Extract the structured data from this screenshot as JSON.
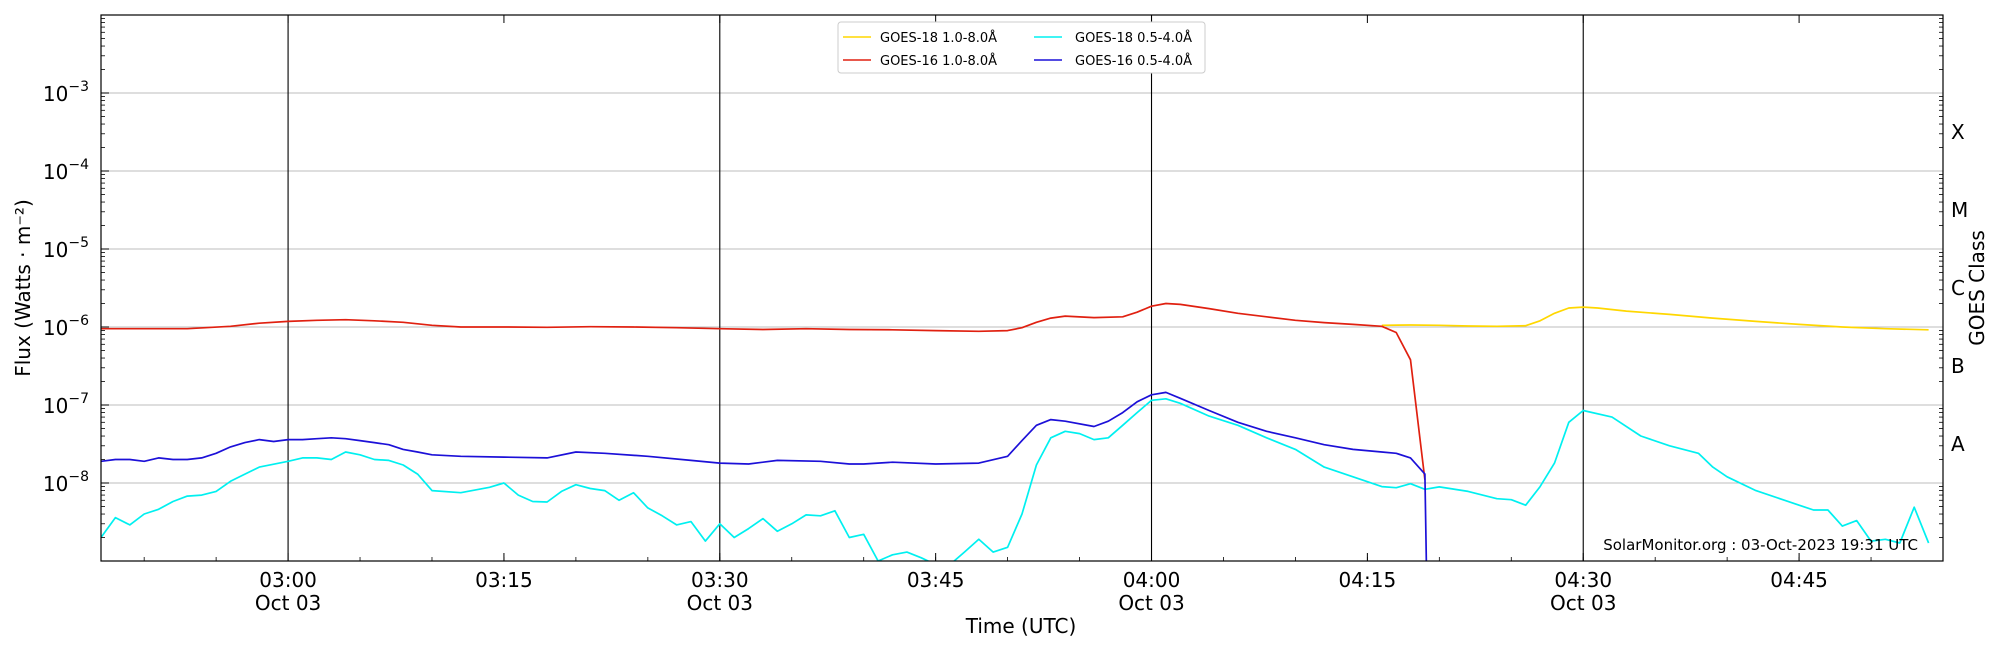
{
  "chart_data": {
    "type": "line",
    "xlabel": "Time (UTC)",
    "ylabel": "Flux (Watts · m⁻²)",
    "y2label": "GOES Class",
    "yscale": "log",
    "xlim": [
      "02:47",
      "04:55"
    ],
    "ylim": [
      1e-09,
      0.01
    ],
    "grid": "horizontal at decades, vertical at half-hours",
    "legend_placement": "top-center",
    "x_ticks": [
      {
        "time": "03:00",
        "label": "03:00",
        "sublabel": "Oct 03"
      },
      {
        "time": "03:15",
        "label": "03:15",
        "sublabel": ""
      },
      {
        "time": "03:30",
        "label": "03:30",
        "sublabel": "Oct 03"
      },
      {
        "time": "03:45",
        "label": "03:45",
        "sublabel": ""
      },
      {
        "time": "04:00",
        "label": "04:00",
        "sublabel": "Oct 03"
      },
      {
        "time": "04:15",
        "label": "04:15",
        "sublabel": ""
      },
      {
        "time": "04:30",
        "label": "04:30",
        "sublabel": "Oct 03"
      },
      {
        "time": "04:45",
        "label": "04:45",
        "sublabel": ""
      }
    ],
    "y_ticks": [
      {
        "value": 1e-08,
        "base": "10",
        "exp": "−8"
      },
      {
        "value": 1e-07,
        "base": "10",
        "exp": "−7"
      },
      {
        "value": 1e-06,
        "base": "10",
        "exp": "−6"
      },
      {
        "value": 1e-05,
        "base": "10",
        "exp": "−5"
      },
      {
        "value": 0.0001,
        "base": "10",
        "exp": "−4"
      },
      {
        "value": 0.001,
        "base": "10",
        "exp": "−3"
      }
    ],
    "goes_classes": [
      {
        "label": "A",
        "value": 3.16e-08
      },
      {
        "label": "B",
        "value": 3.16e-07
      },
      {
        "label": "C",
        "value": 3.16e-06
      },
      {
        "label": "M",
        "value": 3.16e-05
      },
      {
        "label": "X",
        "value": 0.000316
      }
    ],
    "series": [
      {
        "name": "GOES-18 1.0-8.0Å",
        "color": "#ffd700",
        "x": [
          "04:16",
          "04:18",
          "04:20",
          "04:22",
          "04:24",
          "04:26",
          "04:27",
          "04:28",
          "04:29",
          "04:30",
          "04:31",
          "04:33",
          "04:36",
          "04:39",
          "04:42",
          "04:45",
          "04:48",
          "04:51",
          "04:54"
        ],
        "y": [
          1.05e-06,
          1.06e-06,
          1.05e-06,
          1.03e-06,
          1.02e-06,
          1.04e-06,
          1.2e-06,
          1.5e-06,
          1.75e-06,
          1.8e-06,
          1.75e-06,
          1.6e-06,
          1.45e-06,
          1.3e-06,
          1.18e-06,
          1.08e-06,
          1e-06,
          9.5e-07,
          9.2e-07
        ]
      },
      {
        "name": "GOES-16 1.0-8.0Å",
        "color": "#e02010",
        "x": [
          "02:47",
          "02:50",
          "02:53",
          "02:56",
          "02:58",
          "03:00",
          "03:02",
          "03:04",
          "03:06",
          "03:08",
          "03:10",
          "03:12",
          "03:15",
          "03:18",
          "03:21",
          "03:24",
          "03:27",
          "03:30",
          "03:33",
          "03:36",
          "03:39",
          "03:42",
          "03:45",
          "03:48",
          "03:50",
          "03:51",
          "03:52",
          "03:53",
          "03:54",
          "03:56",
          "03:58",
          "03:59",
          "04:00",
          "04:01",
          "04:02",
          "04:04",
          "04:06",
          "04:08",
          "04:10",
          "04:12",
          "04:14",
          "04:16",
          "04:17",
          "04:18",
          "04:19"
        ],
        "y": [
          9.5e-07,
          9.5e-07,
          9.5e-07,
          1.02e-06,
          1.12e-06,
          1.18e-06,
          1.22e-06,
          1.24e-06,
          1.2e-06,
          1.15e-06,
          1.05e-06,
          1e-06,
          1e-06,
          9.9e-07,
          1.01e-06,
          1e-06,
          9.8e-07,
          9.5e-07,
          9.3e-07,
          9.5e-07,
          9.3e-07,
          9.2e-07,
          9e-07,
          8.8e-07,
          9e-07,
          9.8e-07,
          1.15e-06,
          1.3e-06,
          1.38e-06,
          1.32e-06,
          1.35e-06,
          1.55e-06,
          1.85e-06,
          2e-06,
          1.95e-06,
          1.72e-06,
          1.5e-06,
          1.35e-06,
          1.22e-06,
          1.14e-06,
          1.08e-06,
          1.02e-06,
          8.5e-07,
          3.8e-07,
          1.1e-08
        ]
      },
      {
        "name": "GOES-18 0.5-4.0Å",
        "color": "#00f0f0",
        "x": [
          "02:47",
          "02:48",
          "02:49",
          "02:50",
          "02:51",
          "02:52",
          "02:53",
          "02:54",
          "02:55",
          "02:56",
          "02:57",
          "02:58",
          "03:00",
          "03:01",
          "03:02",
          "03:03",
          "03:04",
          "03:05",
          "03:06",
          "03:07",
          "03:08",
          "03:09",
          "03:10",
          "03:12",
          "03:14",
          "03:15",
          "03:16",
          "03:17",
          "03:18",
          "03:19",
          "03:20",
          "03:21",
          "03:22",
          "03:23",
          "03:24",
          "03:25",
          "03:26",
          "03:27",
          "03:28",
          "03:29",
          "03:30",
          "03:31",
          "03:32",
          "03:33",
          "03:34",
          "03:35",
          "03:36",
          "03:37",
          "03:38",
          "03:39",
          "03:40",
          "03:41",
          "03:42",
          "03:43",
          "03:44",
          "03:45",
          "03:46",
          "03:47",
          "03:48",
          "03:49",
          "03:50",
          "03:51",
          "03:52",
          "03:53",
          "03:54",
          "03:55",
          "03:56",
          "03:57",
          "03:58",
          "03:59",
          "04:00",
          "04:01",
          "04:02",
          "04:04",
          "04:06",
          "04:08",
          "04:10",
          "04:12",
          "04:14",
          "04:16",
          "04:17",
          "04:18",
          "04:19",
          "04:20",
          "04:22",
          "04:24",
          "04:25",
          "04:26",
          "04:27",
          "04:28",
          "04:29",
          "04:30",
          "04:32",
          "04:34",
          "04:36",
          "04:38",
          "04:39",
          "04:40",
          "04:42",
          "04:44",
          "04:45",
          "04:46",
          "04:47",
          "04:48",
          "04:49",
          "04:50",
          "04:51",
          "04:52",
          "04:53",
          "04:54"
        ],
        "y": [
          2e-09,
          3.6e-09,
          2.9e-09,
          4e-09,
          4.6e-09,
          5.8e-09,
          6.8e-09,
          7e-09,
          7.8e-09,
          1.05e-08,
          1.3e-08,
          1.6e-08,
          1.9e-08,
          2.1e-08,
          2.1e-08,
          2e-08,
          2.5e-08,
          2.3e-08,
          2e-08,
          1.95e-08,
          1.7e-08,
          1.3e-08,
          8e-09,
          7.5e-09,
          8.8e-09,
          1e-08,
          7e-09,
          5.8e-09,
          5.7e-09,
          7.8e-09,
          9.5e-09,
          8.5e-09,
          8e-09,
          6e-09,
          7.5e-09,
          4.8e-09,
          3.8e-09,
          2.9e-09,
          3.2e-09,
          1.8e-09,
          3e-09,
          2e-09,
          2.6e-09,
          3.5e-09,
          2.4e-09,
          3e-09,
          3.9e-09,
          3.8e-09,
          4.4e-09,
          2e-09,
          2.2e-09,
          1e-09,
          1.2e-09,
          1.3e-09,
          1.1e-09,
          9e-10,
          9e-10,
          1.3e-09,
          1.9e-09,
          1.3e-09,
          1.5e-09,
          4e-09,
          1.7e-08,
          3.8e-08,
          4.6e-08,
          4.3e-08,
          3.6e-08,
          3.8e-08,
          5.5e-08,
          8e-08,
          1.15e-07,
          1.2e-07,
          1.05e-07,
          7.2e-08,
          5.5e-08,
          3.8e-08,
          2.7e-08,
          1.6e-08,
          1.2e-08,
          9e-09,
          8.7e-09,
          9.8e-09,
          8.3e-09,
          8.9e-09,
          7.8e-09,
          6.3e-09,
          6.1e-09,
          5.2e-09,
          9e-09,
          1.8e-08,
          6e-08,
          8.5e-08,
          7e-08,
          4e-08,
          3e-08,
          2.4e-08,
          1.6e-08,
          1.2e-08,
          8e-09,
          6e-09,
          5.2e-09,
          4.5e-09,
          4.5e-09,
          2.8e-09,
          3.3e-09,
          1.8e-09,
          1.9e-09,
          1.7e-09,
          4.9e-09,
          1.7e-09
        ]
      },
      {
        "name": "GOES-16 0.5-4.0Å",
        "color": "#1c10d8",
        "x": [
          "02:47",
          "02:48",
          "02:49",
          "02:50",
          "02:51",
          "02:52",
          "02:53",
          "02:54",
          "02:55",
          "02:56",
          "02:57",
          "02:58",
          "02:59",
          "03:00",
          "03:01",
          "03:02",
          "03:03",
          "03:04",
          "03:05",
          "03:06",
          "03:07",
          "03:08",
          "03:09",
          "03:10",
          "03:12",
          "03:15",
          "03:18",
          "03:20",
          "03:22",
          "03:25",
          "03:28",
          "03:30",
          "03:32",
          "03:34",
          "03:37",
          "03:39",
          "03:40",
          "03:42",
          "03:45",
          "03:48",
          "03:50",
          "03:51",
          "03:52",
          "03:53",
          "03:54",
          "03:56",
          "03:57",
          "03:58",
          "03:59",
          "04:00",
          "04:01",
          "04:02",
          "04:04",
          "04:06",
          "04:08",
          "04:10",
          "04:12",
          "04:14",
          "04:16",
          "04:17",
          "04:18",
          "04:19",
          "04:19.1"
        ],
        "y": [
          1.9e-08,
          2e-08,
          2e-08,
          1.9e-08,
          2.1e-08,
          2e-08,
          2e-08,
          2.1e-08,
          2.4e-08,
          2.9e-08,
          3.3e-08,
          3.6e-08,
          3.4e-08,
          3.6e-08,
          3.6e-08,
          3.7e-08,
          3.8e-08,
          3.7e-08,
          3.5e-08,
          3.3e-08,
          3.1e-08,
          2.7e-08,
          2.5e-08,
          2.3e-08,
          2.2e-08,
          2.15e-08,
          2.1e-08,
          2.5e-08,
          2.4e-08,
          2.2e-08,
          1.95e-08,
          1.8e-08,
          1.75e-08,
          1.95e-08,
          1.9e-08,
          1.75e-08,
          1.75e-08,
          1.85e-08,
          1.75e-08,
          1.8e-08,
          2.2e-08,
          3.5e-08,
          5.5e-08,
          6.5e-08,
          6.2e-08,
          5.3e-08,
          6.2e-08,
          8e-08,
          1.1e-07,
          1.35e-07,
          1.45e-07,
          1.22e-07,
          8.5e-08,
          6e-08,
          4.6e-08,
          3.8e-08,
          3.1e-08,
          2.7e-08,
          2.5e-08,
          2.4e-08,
          2.1e-08,
          1.3e-08,
          9e-10
        ]
      }
    ],
    "annotations": [
      "SolarMonitor.org : 03-Oct-2023 19:31 UTC"
    ]
  }
}
